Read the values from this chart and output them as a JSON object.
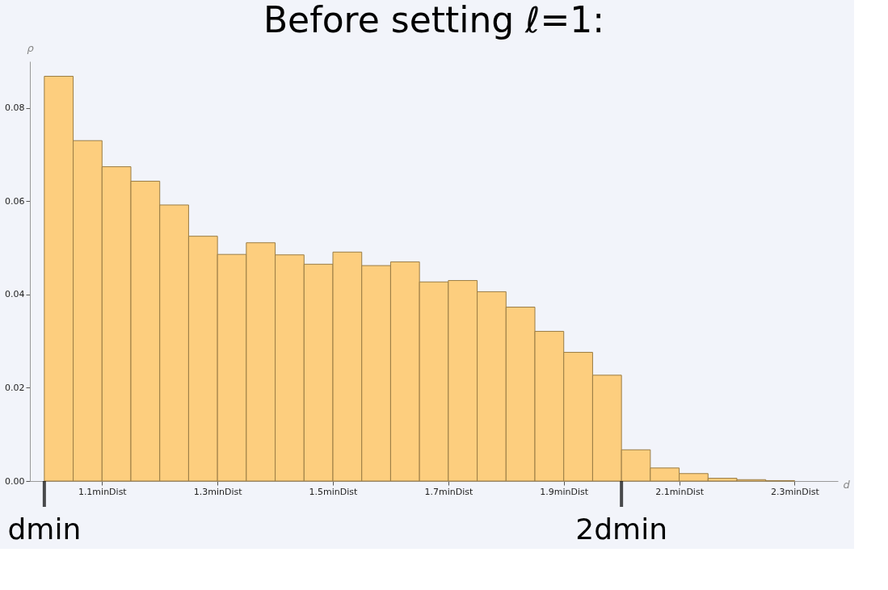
{
  "chart_data": {
    "type": "histogram",
    "title": "Before setting ℓ=1:",
    "xlabel": "d",
    "ylabel": "ρ",
    "bins": [
      1.0,
      1.05,
      1.1,
      1.15,
      1.2,
      1.25,
      1.3,
      1.35,
      1.4,
      1.45,
      1.5,
      1.55,
      1.6,
      1.65,
      1.7,
      1.75,
      1.8,
      1.85,
      1.9,
      1.95,
      2.0,
      2.05,
      2.1,
      2.15,
      2.2,
      2.25,
      2.3
    ],
    "values": [
      0.0868,
      0.073,
      0.0674,
      0.0643,
      0.0592,
      0.0525,
      0.0486,
      0.0511,
      0.0485,
      0.0465,
      0.0491,
      0.0462,
      0.047,
      0.0427,
      0.043,
      0.0406,
      0.0373,
      0.0321,
      0.0276,
      0.0227,
      0.0067,
      0.0028,
      0.0016,
      0.0006,
      0.0003,
      0.0001
    ],
    "color": "#fdce7e",
    "xlim": [
      0.975,
      2.375
    ],
    "ylim": [
      0,
      0.09
    ],
    "xticks": [
      {
        "value": 1.1,
        "label": "1.1minDist"
      },
      {
        "value": 1.3,
        "label": "1.3minDist"
      },
      {
        "value": 1.5,
        "label": "1.5minDist"
      },
      {
        "value": 1.7,
        "label": "1.7minDist"
      },
      {
        "value": 1.9,
        "label": "1.9minDist"
      },
      {
        "value": 2.1,
        "label": "2.1minDist"
      },
      {
        "value": 2.3,
        "label": "2.3minDist"
      }
    ],
    "yticks": [
      {
        "value": 0,
        "label": "0.00"
      },
      {
        "value": 0.02,
        "label": "0.02"
      },
      {
        "value": 0.04,
        "label": "0.04"
      },
      {
        "value": 0.06,
        "label": "0.06"
      },
      {
        "value": 0.08,
        "label": "0.08"
      }
    ],
    "grid": false,
    "annotations": [
      {
        "text": "dmin",
        "x": 1.0,
        "y": 0
      },
      {
        "text": "2dmin",
        "x": 2.0,
        "y": 0
      }
    ]
  }
}
